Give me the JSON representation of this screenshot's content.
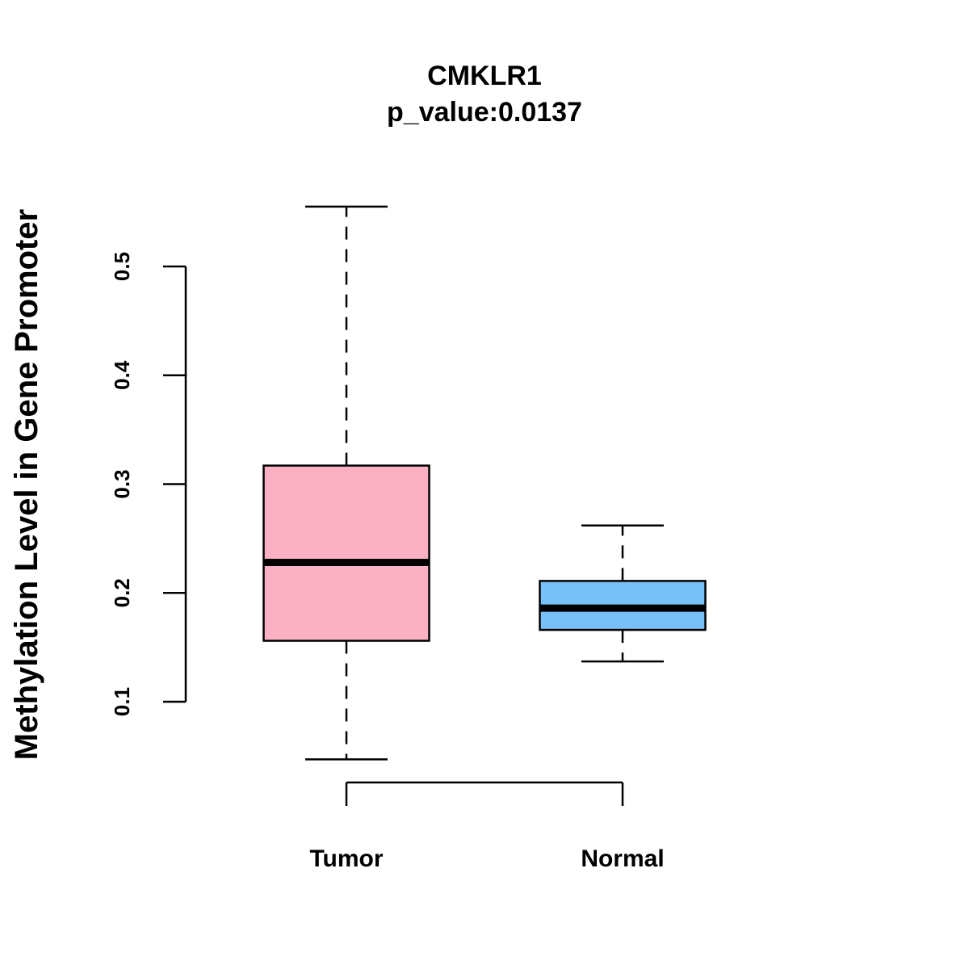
{
  "chart_data": {
    "type": "box",
    "title": "CMKLR1",
    "subtitle": "p_value:0.0137",
    "ylabel": "Methylation Level in Gene Promoter",
    "xlabel": "",
    "ylim": [
      0.1,
      0.5
    ],
    "yticks": [
      0.1,
      0.2,
      0.3,
      0.4,
      0.5
    ],
    "ytick_labels": [
      "0.1",
      "0.2",
      "0.3",
      "0.4",
      "0.5"
    ],
    "categories": [
      "Tumor",
      "Normal"
    ],
    "groups": [
      {
        "name": "Tumor",
        "min": 0.047,
        "q1": 0.156,
        "median": 0.228,
        "q3": 0.317,
        "max": 0.555,
        "color": "#FBB0C3"
      },
      {
        "name": "Normal",
        "min": 0.137,
        "q1": 0.166,
        "median": 0.186,
        "q3": 0.211,
        "max": 0.262,
        "color": "#78C0F8"
      }
    ],
    "grid": false,
    "legend": "none"
  }
}
